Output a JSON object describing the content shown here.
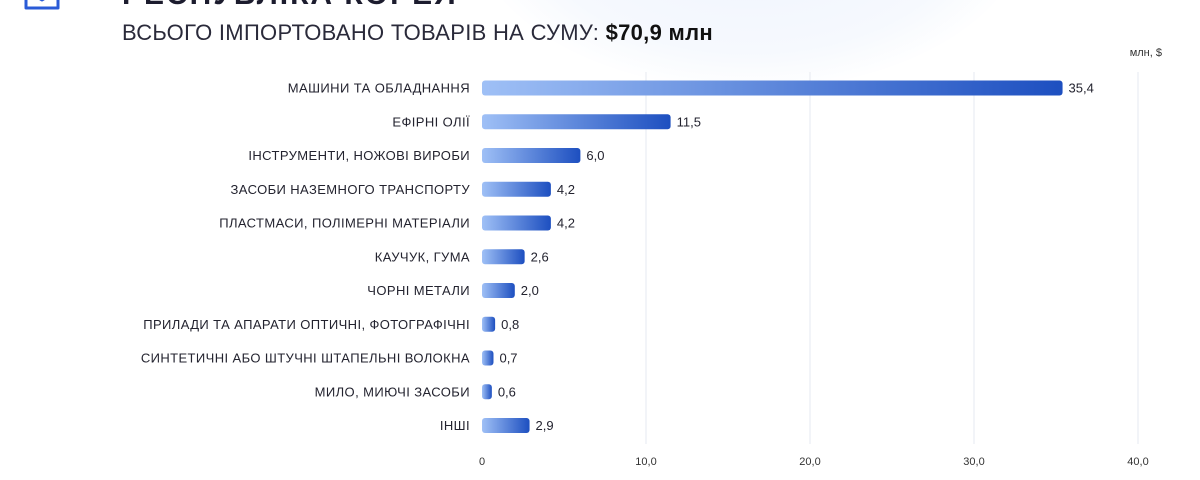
{
  "header": {
    "title": "РЕСПУБЛІКА КОРЕЯ",
    "subtitle_prefix": "ВСЬОГО ІМПОРТОВАНО ТОВАРІВ НА СУМУ:",
    "subtitle_total": "$70,9 млн"
  },
  "colors": {
    "bar_start": "#9fc0f6",
    "bar_end": "#1d4fc0",
    "grid": "#e6e9f0"
  },
  "chart_data": {
    "type": "bar",
    "orientation": "horizontal",
    "unit_label": "млн, $",
    "categories": [
      "МАШИНИ ТА ОБЛАДНАННЯ",
      "ЕФІРНІ ОЛІЇ",
      "ІНСТРУМЕНТИ, НОЖОВІ ВИРОБИ",
      "ЗАСОБИ НАЗЕМНОГО ТРАНСПОРТУ",
      "ПЛАСТМАСИ, ПОЛІМЕРНІ МАТЕРІАЛИ",
      "КАУЧУК, ГУМА",
      "ЧОРНІ МЕТАЛИ",
      "ПРИЛАДИ ТА АПАРАТИ ОПТИЧНІ, ФОТОГРАФІЧНІ",
      "СИНТЕТИЧНІ АБО ШТУЧНІ ШТАПЕЛЬНІ ВОЛОКНА",
      "МИЛО, МИЮЧІ ЗАСОБИ",
      "ІНШІ"
    ],
    "values": [
      35.4,
      11.5,
      6.0,
      4.2,
      4.2,
      2.6,
      2.0,
      0.8,
      0.7,
      0.6,
      2.9
    ],
    "value_labels": [
      "35,4",
      "11,5",
      "6,0",
      "4,2",
      "4,2",
      "2,6",
      "2,0",
      "0,8",
      "0,7",
      "0,6",
      "2,9"
    ],
    "xlim": [
      0,
      40
    ],
    "xticks": [
      0,
      10,
      20,
      30,
      40
    ],
    "xtick_labels": [
      "0",
      "10,0",
      "20,0",
      "30,0",
      "40,0"
    ],
    "grid": true
  }
}
